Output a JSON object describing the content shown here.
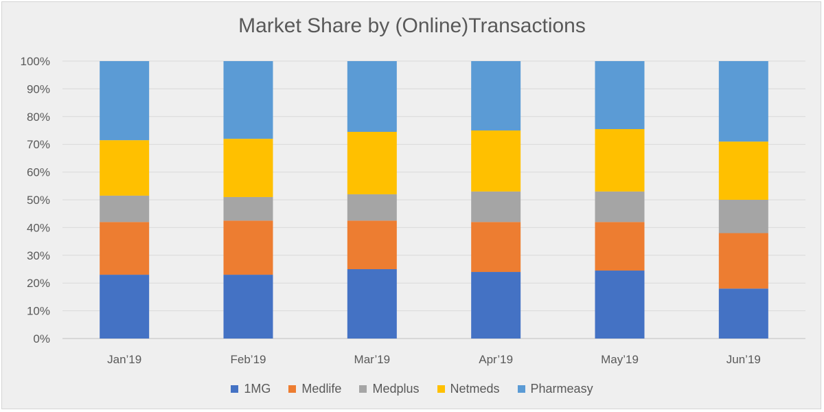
{
  "chart_data": {
    "type": "bar",
    "stacked": true,
    "percent": true,
    "title": "Market Share by (Online)Transactions",
    "categories": [
      "Jan’19",
      "Feb’19",
      "Mar’19",
      "Apr’19",
      "May’19",
      "Jun’19"
    ],
    "ylim": [
      0,
      100
    ],
    "yticks": [
      "0%",
      "10%",
      "20%",
      "30%",
      "40%",
      "50%",
      "60%",
      "70%",
      "80%",
      "90%",
      "100%"
    ],
    "grid": true,
    "legend_position": "bottom",
    "series": [
      {
        "name": "1MG",
        "color": "#4472c4",
        "values": [
          23,
          23,
          25,
          24,
          24.5,
          18
        ]
      },
      {
        "name": "Medlife",
        "color": "#ed7d31",
        "values": [
          19,
          19.5,
          17.5,
          18,
          17.5,
          20
        ]
      },
      {
        "name": "Medplus",
        "color": "#a5a5a5",
        "values": [
          9.5,
          8.5,
          9.5,
          11,
          11,
          12
        ]
      },
      {
        "name": "Netmeds",
        "color": "#ffc000",
        "values": [
          20,
          21,
          22.5,
          22,
          22.5,
          21
        ]
      },
      {
        "name": "Pharmeasy",
        "color": "#5b9bd5",
        "values": [
          28.5,
          28,
          25.5,
          25,
          24.5,
          29
        ]
      }
    ]
  }
}
